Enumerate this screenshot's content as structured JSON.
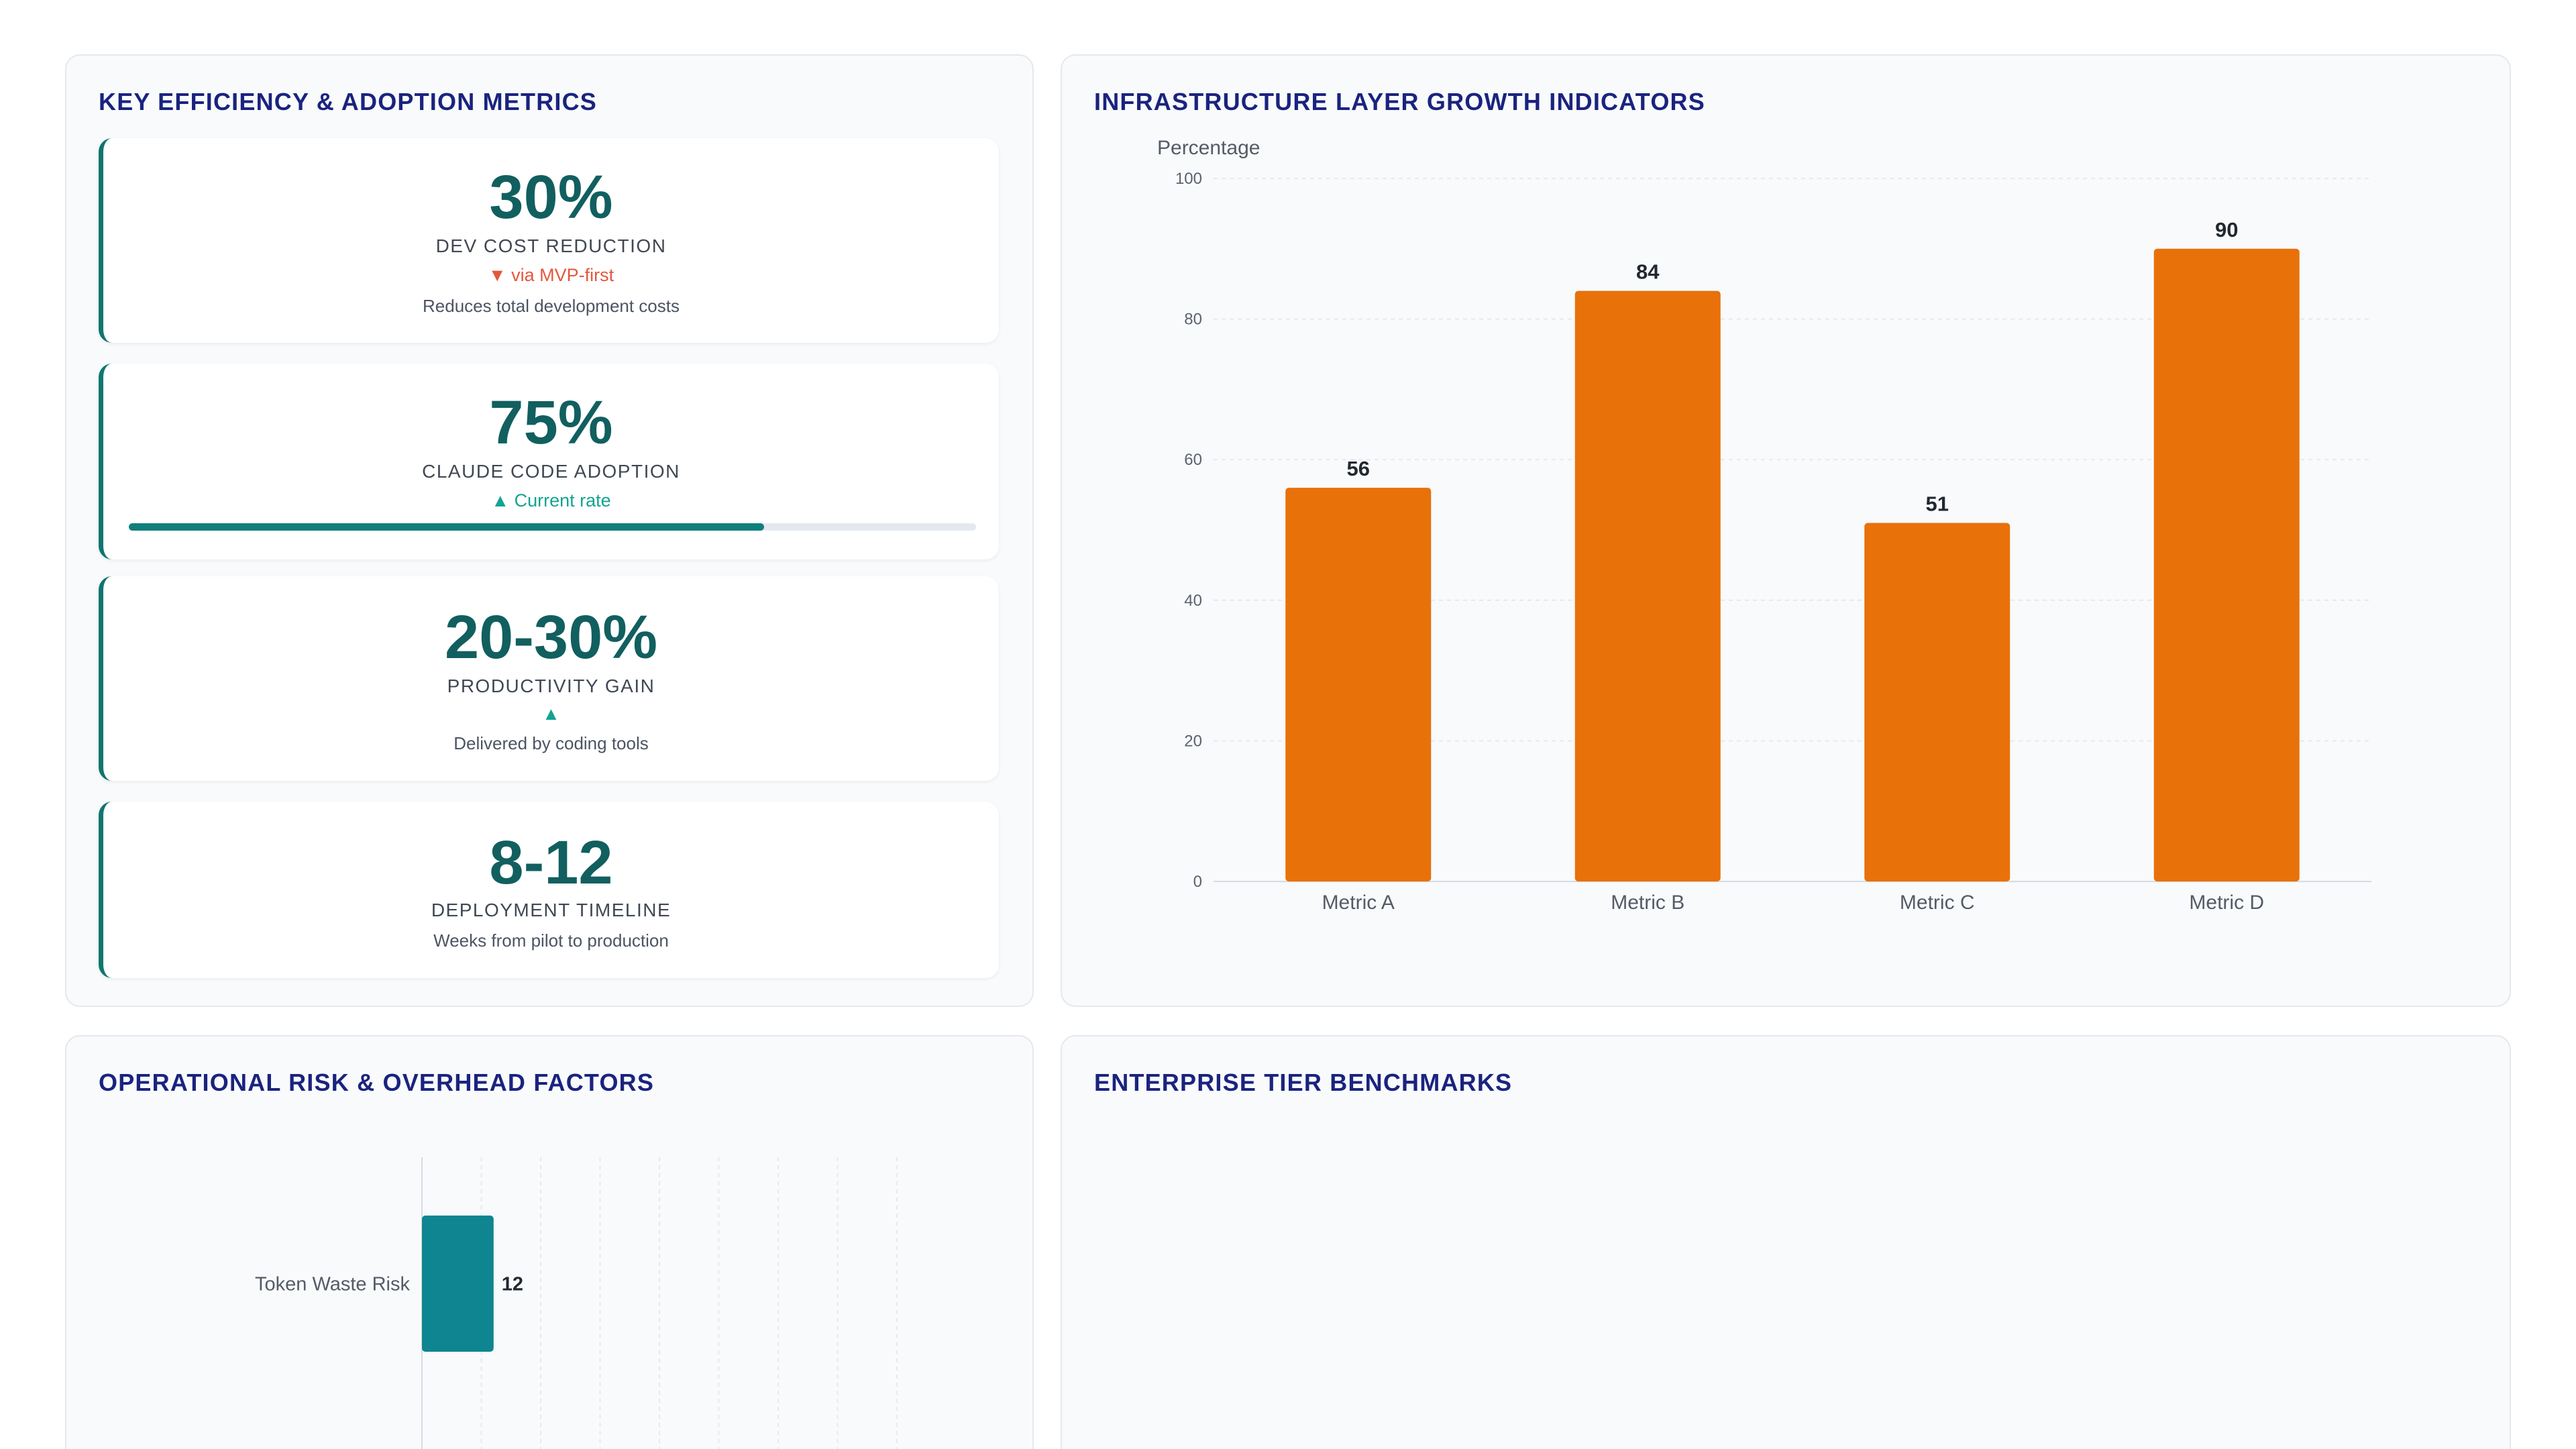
{
  "panels": {
    "kpi": {
      "title": "KEY EFFICIENCY & ADOPTION METRICS"
    },
    "growth": {
      "title": "INFRASTRUCTURE LAYER GROWTH INDICATORS"
    },
    "risk": {
      "title": "OPERATIONAL RISK & OVERHEAD FACTORS"
    },
    "enterprise": {
      "title": "ENTERPRISE TIER BENCHMARKS"
    }
  },
  "kpis": [
    {
      "value": "30%",
      "label": "DEV COST REDUCTION",
      "trend": "▼ via MVP-first",
      "trend_direction": "down",
      "description": "Reduces total development costs"
    },
    {
      "value": "75%",
      "label": "CLAUDE CODE ADOPTION",
      "trend": "▲ Current rate",
      "trend_direction": "up",
      "progress": 0.75
    },
    {
      "value": "20-30%",
      "label": "PRODUCTIVITY GAIN",
      "trend": "▲",
      "trend_direction": "up",
      "description": "Delivered by coding tools"
    },
    {
      "value": "8-12",
      "label": "DEPLOYMENT TIMELINE",
      "description": "Weeks from pilot to production"
    }
  ],
  "colors": {
    "accent_teal": "#0f766e",
    "bar_orange": "#e8710a",
    "hbar_teal": "#0e8591",
    "trend_down": "#e4573d",
    "trend_up": "#13a391",
    "title_navy": "#1a237e"
  },
  "chart_data": [
    {
      "type": "bar",
      "title": "INFRASTRUCTURE LAYER GROWTH INDICATORS",
      "ylabel": "Percentage",
      "categories": [
        "Metric A",
        "Metric B",
        "Metric C",
        "Metric D"
      ],
      "values": [
        56,
        84,
        51,
        90
      ],
      "ylim": [
        0,
        100
      ],
      "yticks": [
        0,
        20,
        40,
        60,
        80,
        100
      ],
      "grid": true,
      "data_labels": true
    },
    {
      "type": "bar",
      "orientation": "horizontal",
      "title": "OPERATIONAL RISK & OVERHEAD FACTORS",
      "categories": [
        "Token Waste Risk"
      ],
      "values": [
        12
      ],
      "grid": true,
      "data_labels": true
    }
  ]
}
